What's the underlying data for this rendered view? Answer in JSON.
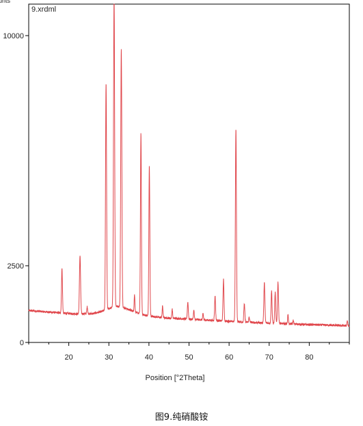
{
  "chart_data": {
    "type": "line",
    "title": "",
    "file_label": "9.xrdml",
    "ylabel_visible": "unts",
    "xlabel": "Position [°2Theta]",
    "xlim": [
      10,
      90
    ],
    "ylim": [
      0,
      10000
    ],
    "xticks": [
      20,
      30,
      40,
      50,
      60,
      70,
      80
    ],
    "yticks": [
      0,
      2500,
      10000
    ],
    "ytick_labels": [
      "0",
      "2500",
      "10000"
    ],
    "grid": false,
    "line_color": "#e0474c",
    "baseline": [
      [
        10,
        1040
      ],
      [
        14,
        1000
      ],
      [
        18,
        960
      ],
      [
        22,
        930
      ],
      [
        26,
        940
      ],
      [
        28,
        1000
      ],
      [
        30,
        1100
      ],
      [
        32,
        1180
      ],
      [
        34,
        1120
      ],
      [
        36,
        1020
      ],
      [
        38,
        920
      ],
      [
        40,
        860
      ],
      [
        44,
        800
      ],
      [
        50,
        760
      ],
      [
        56,
        720
      ],
      [
        60,
        690
      ],
      [
        66,
        650
      ],
      [
        70,
        630
      ],
      [
        76,
        600
      ],
      [
        80,
        580
      ],
      [
        86,
        560
      ],
      [
        90,
        540
      ]
    ],
    "peaks": [
      {
        "x": 18.3,
        "h": 1450,
        "w": 0.12
      },
      {
        "x": 22.8,
        "h": 1900,
        "w": 0.14
      },
      {
        "x": 24.6,
        "h": 230,
        "w": 0.1
      },
      {
        "x": 29.3,
        "h": 7400,
        "w": 0.13
      },
      {
        "x": 31.3,
        "h": 10200,
        "w": 0.14
      },
      {
        "x": 33.1,
        "h": 8400,
        "w": 0.14
      },
      {
        "x": 36.4,
        "h": 550,
        "w": 0.1
      },
      {
        "x": 38.0,
        "h": 5900,
        "w": 0.12
      },
      {
        "x": 40.1,
        "h": 4900,
        "w": 0.12
      },
      {
        "x": 43.4,
        "h": 380,
        "w": 0.1
      },
      {
        "x": 45.8,
        "h": 300,
        "w": 0.1
      },
      {
        "x": 49.7,
        "h": 550,
        "w": 0.12
      },
      {
        "x": 51.2,
        "h": 300,
        "w": 0.1
      },
      {
        "x": 53.5,
        "h": 200,
        "w": 0.1
      },
      {
        "x": 56.5,
        "h": 800,
        "w": 0.12
      },
      {
        "x": 58.6,
        "h": 1350,
        "w": 0.12
      },
      {
        "x": 61.7,
        "h": 6300,
        "w": 0.13
      },
      {
        "x": 63.8,
        "h": 600,
        "w": 0.12
      },
      {
        "x": 65.0,
        "h": 180,
        "w": 0.1
      },
      {
        "x": 68.8,
        "h": 1300,
        "w": 0.13
      },
      {
        "x": 70.6,
        "h": 1050,
        "w": 0.12
      },
      {
        "x": 71.5,
        "h": 1000,
        "w": 0.12
      },
      {
        "x": 72.2,
        "h": 1350,
        "w": 0.13
      },
      {
        "x": 74.7,
        "h": 300,
        "w": 0.1
      },
      {
        "x": 76.0,
        "h": 120,
        "w": 0.1
      },
      {
        "x": 89.5,
        "h": 150,
        "w": 0.1
      }
    ]
  },
  "caption": "图9.纯硝酸铵"
}
